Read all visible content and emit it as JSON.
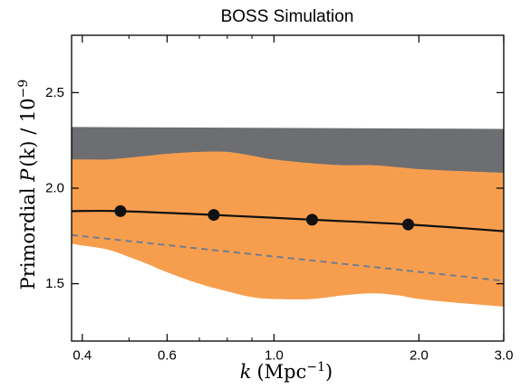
{
  "chart_data": {
    "type": "line",
    "title": "BOSS Simulation",
    "xlabel": {
      "var": "k",
      "text": "(Mpc",
      "sup": "−1",
      "close": ")"
    },
    "ylabel": {
      "prefix": "Primordial ",
      "var": "P",
      "args": "(k)",
      "suffix": " / 10",
      "sup": "−9"
    },
    "x_scale": "log",
    "xlim": [
      0.38,
      3.0
    ],
    "ylim": [
      1.2,
      2.8
    ],
    "x_ticks": [
      0.4,
      0.6,
      1.0,
      2.0,
      3.0
    ],
    "x_tick_labels": [
      "0.4",
      "0.6",
      "1.0",
      "2.0",
      "3.0"
    ],
    "y_ticks": [
      1.5,
      2.0,
      2.5
    ],
    "y_tick_labels": [
      "1.5",
      "2.0",
      "2.5"
    ],
    "grey_band": {
      "color": "#6d6e71",
      "x": [
        0.38,
        3.0
      ],
      "lower": [
        2.15,
        2.08
      ],
      "upper": [
        2.32,
        2.31
      ]
    },
    "orange_band": {
      "color": "#f79e4e",
      "x": [
        0.38,
        0.4,
        0.45,
        0.5,
        0.55,
        0.6,
        0.7,
        0.8,
        0.9,
        1.0,
        1.2,
        1.4,
        1.6,
        1.8,
        2.0,
        2.4,
        3.0
      ],
      "lower": [
        1.71,
        1.7,
        1.68,
        1.64,
        1.6,
        1.56,
        1.5,
        1.46,
        1.43,
        1.42,
        1.42,
        1.44,
        1.45,
        1.44,
        1.42,
        1.4,
        1.38
      ],
      "upper": [
        2.15,
        2.15,
        2.15,
        2.16,
        2.17,
        2.18,
        2.19,
        2.19,
        2.17,
        2.15,
        2.13,
        2.12,
        2.12,
        2.11,
        2.1,
        2.09,
        2.08
      ]
    },
    "series": [
      {
        "line": "solid",
        "color": "#111111",
        "x": [
          0.38,
          0.48,
          0.75,
          1.2,
          1.9,
          3.0
        ],
        "values": [
          1.88,
          1.88,
          1.86,
          1.835,
          1.81,
          1.775
        ]
      },
      {
        "line": "dashed",
        "color": "#6f7d91",
        "x": [
          0.38,
          3.0
        ],
        "values": [
          1.755,
          1.515
        ]
      }
    ],
    "points": {
      "color": "#111111",
      "x": [
        0.48,
        0.75,
        1.2,
        1.9
      ],
      "values": [
        1.88,
        1.86,
        1.835,
        1.81
      ]
    }
  }
}
